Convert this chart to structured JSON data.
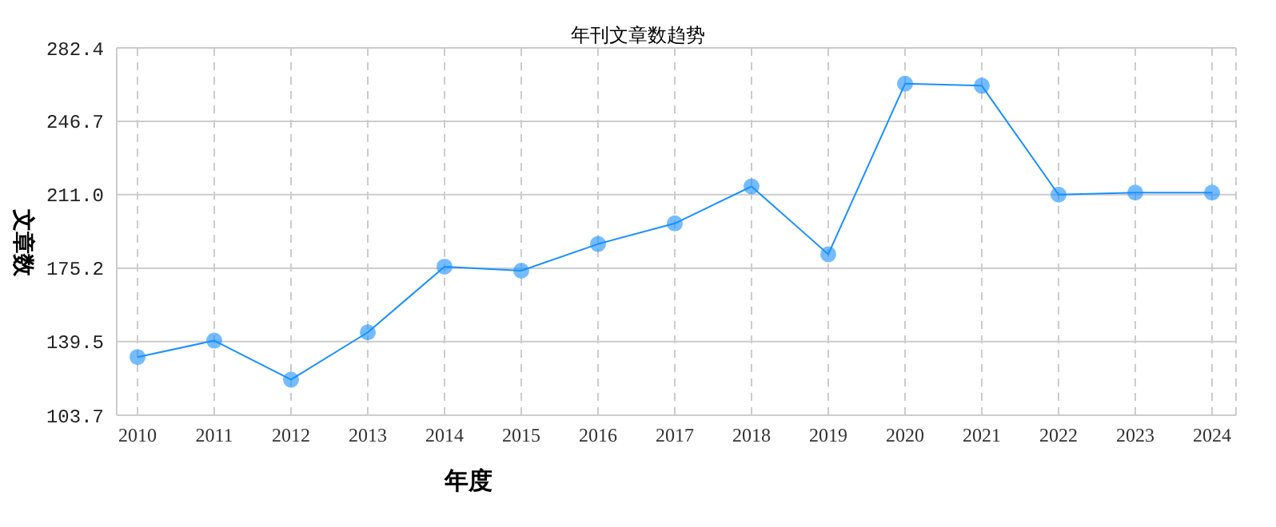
{
  "chart_data": {
    "type": "line",
    "title": "年刊文章数趋势",
    "xlabel": "年度",
    "ylabel": "文章数",
    "categories": [
      "2010",
      "2011",
      "2012",
      "2013",
      "2014",
      "2015",
      "2016",
      "2017",
      "2018",
      "2019",
      "2020",
      "2021",
      "2022",
      "2023",
      "2024"
    ],
    "series": [
      {
        "color": "#1890ff",
        "values": [
          132,
          140,
          121,
          144,
          176,
          174,
          187,
          197,
          215,
          182,
          265,
          264,
          211,
          212,
          212
        ]
      }
    ],
    "ylim": [
      103.7,
      282.4
    ],
    "yticks": [
      {
        "value": 103.7,
        "label": "103.7"
      },
      {
        "value": 139.5,
        "label": "139.5"
      },
      {
        "value": 175.2,
        "label": "175.2"
      },
      {
        "value": 211.0,
        "label": "211.0"
      },
      {
        "value": 246.7,
        "label": "246.7"
      },
      {
        "value": 282.4,
        "label": "282.4"
      }
    ],
    "grid": true,
    "marker": "circle",
    "line_style": "solid"
  }
}
